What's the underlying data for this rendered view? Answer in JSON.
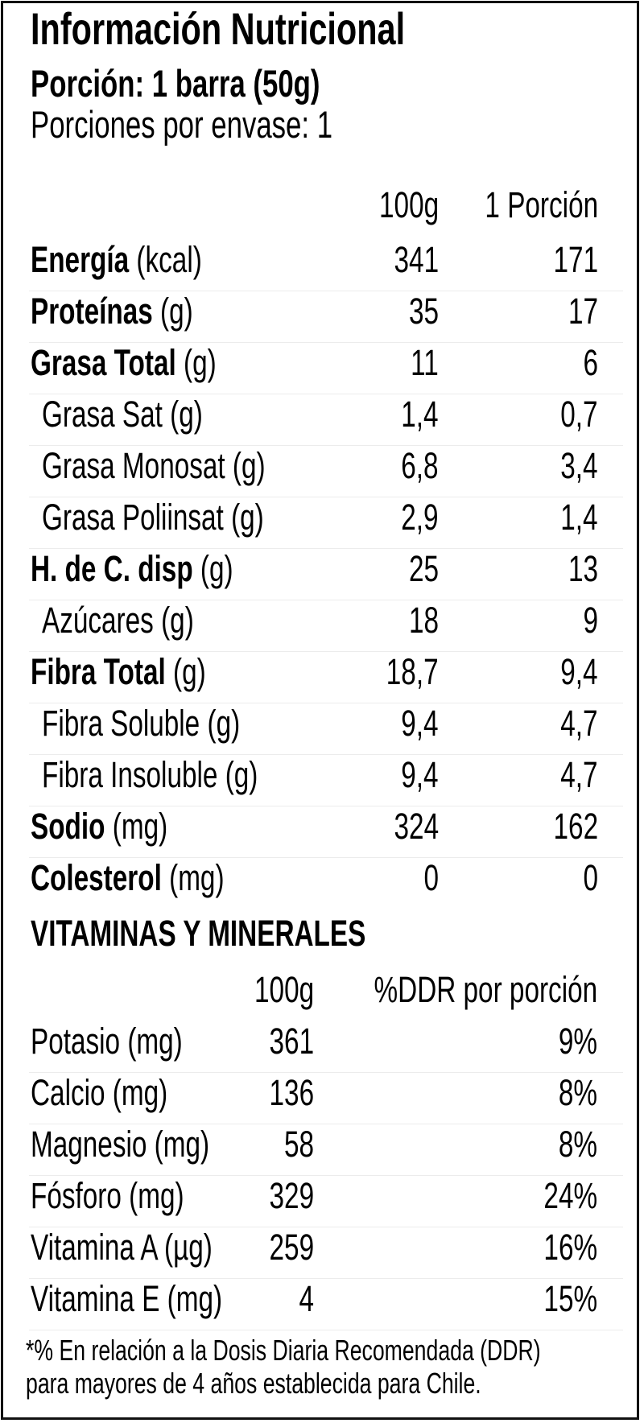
{
  "header": {
    "title": "Información Nutricional",
    "serving_size": "Porción: 1 barra (50g)",
    "servings_per_container": "Porciones por envase: 1"
  },
  "nutrition_table": {
    "columns": [
      "100g",
      "1 Porción"
    ],
    "rows": [
      {
        "name": "Energía",
        "unit": "(kcal)",
        "bold": true,
        "indent": false,
        "per_100g": "341",
        "per_serving": "171"
      },
      {
        "name": "Proteínas",
        "unit": "(g)",
        "bold": true,
        "indent": false,
        "per_100g": "35",
        "per_serving": "17"
      },
      {
        "name": "Grasa Total",
        "unit": "(g)",
        "bold": true,
        "indent": false,
        "per_100g": "11",
        "per_serving": "6"
      },
      {
        "name": "Grasa Sat",
        "unit": "(g)",
        "bold": false,
        "indent": true,
        "per_100g": "1,4",
        "per_serving": "0,7"
      },
      {
        "name": "Grasa Monosat",
        "unit": "(g)",
        "bold": false,
        "indent": true,
        "per_100g": "6,8",
        "per_serving": "3,4"
      },
      {
        "name": "Grasa Poliinsat",
        "unit": "(g)",
        "bold": false,
        "indent": true,
        "per_100g": "2,9",
        "per_serving": "1,4"
      },
      {
        "name": "H. de C. disp",
        "unit": "(g)",
        "bold": true,
        "indent": false,
        "per_100g": "25",
        "per_serving": "13"
      },
      {
        "name": "Azúcares",
        "unit": "(g)",
        "bold": false,
        "indent": true,
        "per_100g": "18",
        "per_serving": "9"
      },
      {
        "name": "Fibra Total",
        "unit": "(g)",
        "bold": true,
        "indent": false,
        "per_100g": "18,7",
        "per_serving": "9,4"
      },
      {
        "name": "Fibra Soluble",
        "unit": "(g)",
        "bold": false,
        "indent": true,
        "per_100g": "9,4",
        "per_serving": "4,7"
      },
      {
        "name": "Fibra Insoluble",
        "unit": "(g)",
        "bold": false,
        "indent": true,
        "per_100g": "9,4",
        "per_serving": "4,7"
      },
      {
        "name": "Sodio",
        "unit": "(mg)",
        "bold": true,
        "indent": false,
        "per_100g": "324",
        "per_serving": "162"
      },
      {
        "name": "Colesterol",
        "unit": "(mg)",
        "bold": true,
        "indent": false,
        "per_100g": "0",
        "per_serving": "0"
      }
    ]
  },
  "vitamins_table": {
    "title": "VITAMINAS Y MINERALES",
    "columns": [
      "100g",
      "%DDR por porción"
    ],
    "rows": [
      {
        "name": "Potasio (mg)",
        "per_100g": "361",
        "ddr": "9%"
      },
      {
        "name": "Calcio (mg)",
        "per_100g": "136",
        "ddr": "8%"
      },
      {
        "name": "Magnesio (mg)",
        "per_100g": "58",
        "ddr": "8%"
      },
      {
        "name": "Fósforo (mg)",
        "per_100g": "329",
        "ddr": "24%"
      },
      {
        "name": "Vitamina A (µg)",
        "per_100g": "259",
        "ddr": "16%"
      },
      {
        "name": "Vitamina E (mg)",
        "per_100g": "4",
        "ddr": "15%"
      }
    ]
  },
  "footnote": {
    "line1": "*% En relación a la Dosis Diaria Recomendada (DDR)",
    "line2": "para mayores de 4 años establecida para Chile."
  },
  "colors": {
    "text": "#000000",
    "border": "#111111",
    "separator": "#ececec",
    "background": "#ffffff"
  }
}
